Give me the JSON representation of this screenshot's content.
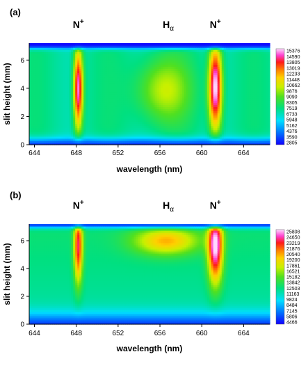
{
  "chart_data": [
    {
      "panel": "(a)",
      "type": "heatmap",
      "xlabel": "wavelength (nm)",
      "ylabel": "slit height (mm)",
      "xlim": [
        643.5,
        666.5
      ],
      "ylim": [
        0,
        7.2
      ],
      "xticks": [
        "644",
        "648",
        "652",
        "656",
        "660",
        "664"
      ],
      "yticks": [
        "0",
        "2",
        "4",
        "6"
      ],
      "annotations": [
        {
          "base": "N",
          "sup": "+",
          "x": 648.2
        },
        {
          "base": "H",
          "sub": "α",
          "x": 656.8
        },
        {
          "base": "N",
          "sup": "+",
          "x": 661.3
        }
      ],
      "colorbar": [
        "15376",
        "14590",
        "13805",
        "13019",
        "12233",
        "11448",
        "10662",
        "9876",
        "9090",
        "8305",
        "7519",
        "6733",
        "5948",
        "5162",
        "4376",
        "3590",
        "2805"
      ],
      "peaks": [
        {
          "center": 648.2,
          "max": 15000
        },
        {
          "center": 661.3,
          "max": 15376
        },
        {
          "center": 656.3,
          "max": 9600
        }
      ]
    },
    {
      "panel": "(b)",
      "type": "heatmap",
      "xlabel": "wavelength (nm)",
      "ylabel": "slit height (mm)",
      "xlim": [
        643.5,
        666.5
      ],
      "ylim": [
        0,
        7.2
      ],
      "xticks": [
        "644",
        "648",
        "652",
        "656",
        "660",
        "664"
      ],
      "yticks": [
        "0",
        "2",
        "4",
        "6"
      ],
      "annotations": [
        {
          "base": "N",
          "sup": "+",
          "x": 648.2
        },
        {
          "base": "H",
          "sub": "α",
          "x": 656.8
        },
        {
          "base": "N",
          "sup": "+",
          "x": 661.3
        }
      ],
      "colorbar": [
        "25808",
        "24650",
        "23219",
        "21876",
        "20540",
        "19200",
        "17861",
        "16521",
        "15182",
        "13842",
        "12503",
        "11163",
        "9824",
        "8484",
        "7145",
        "5806",
        "4466"
      ],
      "peaks": [
        {
          "center": 648.2,
          "max": 23500
        },
        {
          "center": 661.3,
          "max": 25808
        },
        {
          "center": 656.5,
          "max": 19800
        }
      ]
    }
  ]
}
